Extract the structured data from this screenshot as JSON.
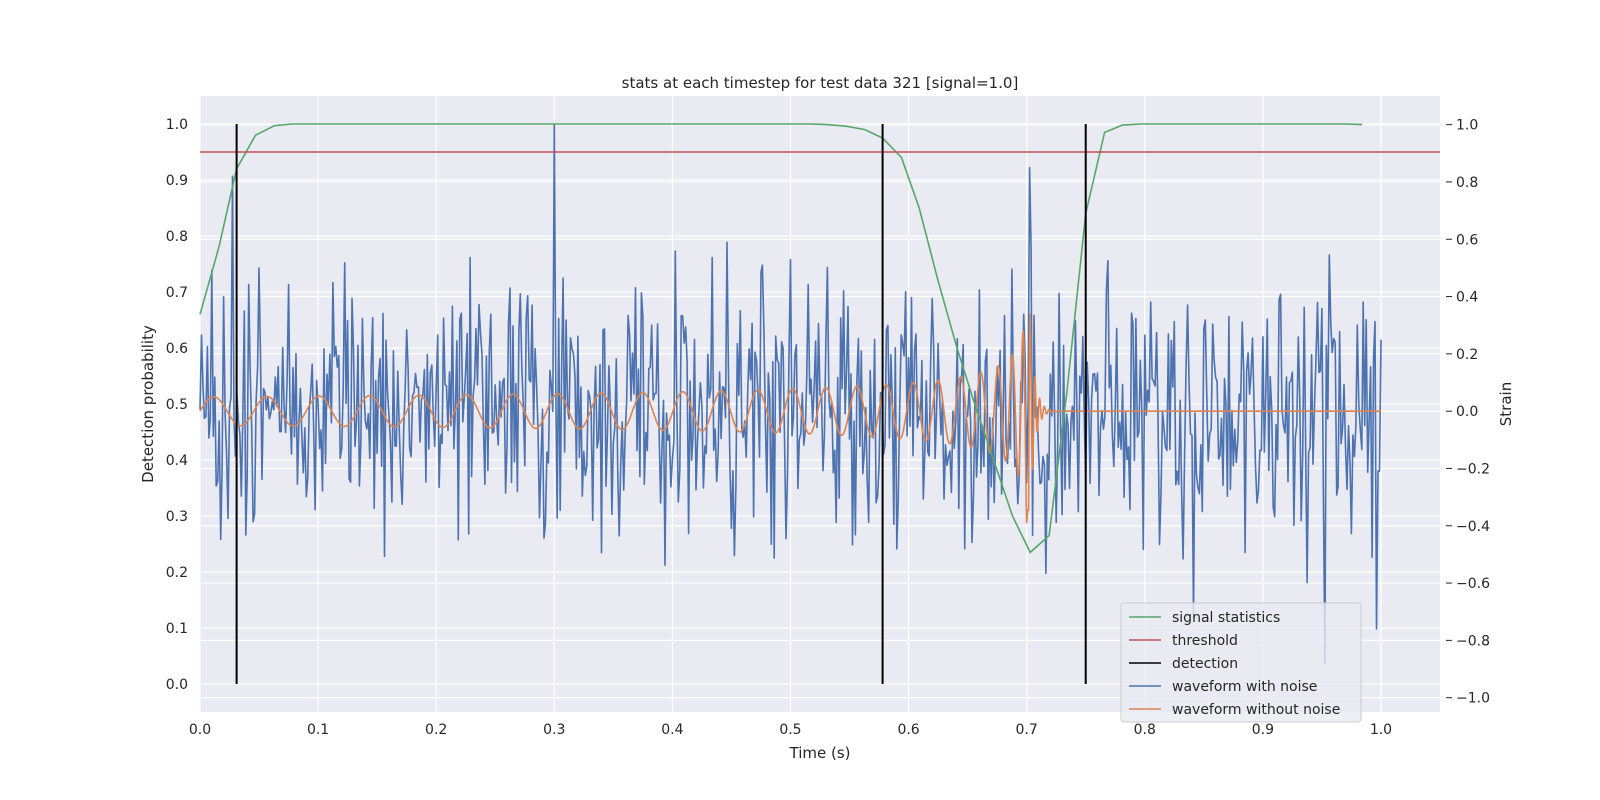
{
  "chart_data": {
    "type": "line",
    "title": "stats at each timestep for test data 321 [signal=1.0]",
    "xlabel": "Time (s)",
    "ylabel_left": "Detection probability",
    "ylabel_right": "Strain",
    "xlim": [
      0.0,
      1.05
    ],
    "ylim_left": [
      -0.05,
      1.05
    ],
    "ylim_right": [
      -1.05,
      1.1
    ],
    "x_ticks": [
      "0.0",
      "0.1",
      "0.2",
      "0.3",
      "0.4",
      "0.5",
      "0.6",
      "0.7",
      "0.8",
      "0.9",
      "1.0"
    ],
    "y_left_ticks": [
      "0.0",
      "0.1",
      "0.2",
      "0.3",
      "0.4",
      "0.5",
      "0.6",
      "0.7",
      "0.8",
      "0.9",
      "1.0"
    ],
    "y_right_ticks": [
      "−1.0",
      "−0.8",
      "−0.6",
      "−0.4",
      "−0.2",
      "0.0",
      "0.2",
      "0.4",
      "0.6",
      "0.8",
      "1.0"
    ],
    "grid": true,
    "legend_position": "lower-right",
    "colors": {
      "signal_statistics": "#55a868",
      "threshold": "#c44e52",
      "detection": "#000000",
      "waveform_with_noise": "#4c72b0",
      "waveform_without_noise": "#dd8452",
      "plot_background": "#eaeaf2"
    },
    "series": [
      {
        "name": "signal statistics",
        "axis": "left",
        "x": [
          0.0,
          0.016,
          0.031,
          0.047,
          0.063,
          0.078,
          0.094,
          0.109,
          0.125,
          0.141,
          0.156,
          0.172,
          0.188,
          0.203,
          0.219,
          0.234,
          0.25,
          0.266,
          0.281,
          0.297,
          0.313,
          0.328,
          0.344,
          0.359,
          0.375,
          0.391,
          0.406,
          0.422,
          0.438,
          0.453,
          0.469,
          0.484,
          0.5,
          0.516,
          0.531,
          0.547,
          0.563,
          0.578,
          0.594,
          0.609,
          0.625,
          0.641,
          0.656,
          0.672,
          0.688,
          0.703,
          0.719,
          0.734,
          0.75,
          0.766,
          0.781,
          0.797,
          0.813,
          0.828,
          0.844,
          0.859,
          0.875,
          0.891,
          0.906,
          0.922,
          0.938,
          0.953,
          0.969,
          0.984
        ],
        "y": [
          0.66,
          0.78,
          0.92,
          0.98,
          0.997,
          1.0,
          1.0,
          1.0,
          1.0,
          1.0,
          1.0,
          1.0,
          1.0,
          1.0,
          1.0,
          1.0,
          1.0,
          1.0,
          1.0,
          1.0,
          1.0,
          1.0,
          1.0,
          1.0,
          1.0,
          1.0,
          1.0,
          1.0,
          1.0,
          1.0,
          1.0,
          1.0,
          1.0,
          1.0,
          0.999,
          0.996,
          0.99,
          0.975,
          0.94,
          0.85,
          0.72,
          0.6,
          0.5,
          0.4,
          0.3,
          0.235,
          0.265,
          0.52,
          0.84,
          0.985,
          0.998,
          1.0,
          1.0,
          1.0,
          1.0,
          1.0,
          1.0,
          1.0,
          1.0,
          1.0,
          1.0,
          1.0,
          1.0,
          0.999
        ]
      },
      {
        "name": "threshold",
        "axis": "left",
        "x": [
          0.0,
          1.05
        ],
        "y": [
          0.95,
          0.95
        ]
      },
      {
        "name": "detection",
        "axis": "left",
        "type": "vlines",
        "x": [
          0.031,
          0.578,
          0.75
        ],
        "ymin": 0.0,
        "ymax": 1.0
      },
      {
        "name": "waveform with noise",
        "axis": "right",
        "note": "noisy strain, roughly uniform amplitude about ±0.5 across 0.0–1.0 s, with peaks to 1.0 near 0.3 s and −0.9 near 0.95 s",
        "x_range": [
          0.0,
          1.0
        ],
        "samples": 800,
        "amplitude": 0.45,
        "peaks": [
          {
            "x": 0.3,
            "y": 1.0
          },
          {
            "x": 0.028,
            "y": 0.82
          },
          {
            "x": 0.702,
            "y": 0.85
          },
          {
            "x": 0.953,
            "y": -0.88
          },
          {
            "x": 0.996,
            "y": -0.76
          },
          {
            "x": 0.841,
            "y": -0.72
          }
        ]
      },
      {
        "name": "waveform without noise",
        "axis": "right",
        "note": "chirp: amplitude 0.05 at 0.0 s growing to about 0.43 at merger (0.70 s), frequency rising from about 14 Hz; ringdown to 0.0 by 0.72 s, flat until 1.0 s",
        "x_range": [
          0.0,
          1.0
        ],
        "merger_time": 0.702,
        "start_amplitude": 0.05,
        "peak_amplitude": 0.43,
        "start_frequency_hz": 14
      }
    ]
  },
  "legend": {
    "items": [
      {
        "label": "signal statistics",
        "color": "#55a868"
      },
      {
        "label": "threshold",
        "color": "#c44e52"
      },
      {
        "label": "detection",
        "color": "#000000"
      },
      {
        "label": "waveform with noise",
        "color": "#4c72b0"
      },
      {
        "label": "waveform without noise",
        "color": "#dd8452"
      }
    ]
  }
}
